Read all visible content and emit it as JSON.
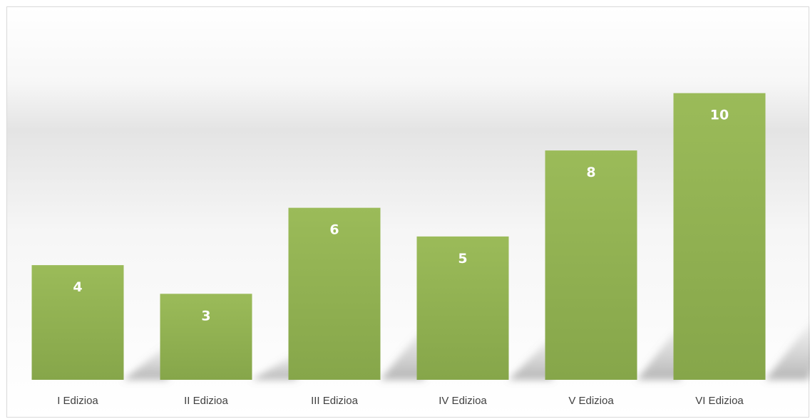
{
  "chart_data": {
    "type": "bar",
    "categories": [
      "I Edizioa",
      "II Edizioa",
      "III Edizioa",
      "IV Edizioa",
      "V Edizioa",
      "VI Edizioa"
    ],
    "values": [
      4,
      3,
      6,
      5,
      8,
      10
    ],
    "data_labels": [
      "4",
      "3",
      "6",
      "5",
      "8",
      "10"
    ],
    "title": "",
    "xlabel": "",
    "ylabel": "",
    "ylim": [
      0,
      13
    ],
    "grid": false,
    "legend": "none",
    "data_labels_position": "inside-top",
    "colors": {
      "bar_top": "#9bbb59",
      "bar_bottom": "#86a64a",
      "data_label": "#ffffff",
      "tick_label": "#404040",
      "frame_border": "#d9d9d9"
    }
  }
}
